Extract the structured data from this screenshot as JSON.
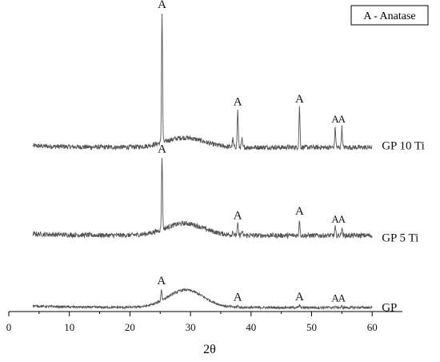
{
  "chart_data": {
    "type": "line",
    "title": "",
    "xlabel": "2θ",
    "ylabel": "",
    "xlim": [
      0,
      65
    ],
    "x_ticks": [
      0,
      10,
      20,
      30,
      40,
      50,
      60
    ],
    "x_range": [
      4,
      60
    ],
    "grid": false,
    "legend": {
      "position": "top-right",
      "text": "A - Anatase"
    },
    "peak_marker": "A",
    "series": [
      {
        "name": "GP 10 Ti",
        "offset": 2.0,
        "noise": 0.03,
        "hump": {
          "center": 29,
          "width": 4.5,
          "height": 0.12
        },
        "peaks": [
          {
            "x": 25.3,
            "height": 1.62,
            "label": "A"
          },
          {
            "x": 37.0,
            "height": 0.1
          },
          {
            "x": 37.8,
            "height": 0.46,
            "label": "A"
          },
          {
            "x": 38.5,
            "height": 0.1
          },
          {
            "x": 48.0,
            "height": 0.5,
            "label": "A"
          },
          {
            "x": 53.9,
            "height": 0.25,
            "label": "A"
          },
          {
            "x": 55.0,
            "height": 0.25,
            "label": "A"
          }
        ]
      },
      {
        "name": "GP 5 Ti",
        "offset": 0.9,
        "noise": 0.03,
        "hump": {
          "center": 29,
          "width": 4.5,
          "height": 0.15
        },
        "peaks": [
          {
            "x": 25.3,
            "height": 0.9,
            "label": "A"
          },
          {
            "x": 37.0,
            "height": 0.05
          },
          {
            "x": 37.8,
            "height": 0.14,
            "label": "A"
          },
          {
            "x": 38.5,
            "height": 0.05
          },
          {
            "x": 48.0,
            "height": 0.2,
            "label": "A"
          },
          {
            "x": 53.9,
            "height": 0.1,
            "label": "A"
          },
          {
            "x": 55.0,
            "height": 0.1,
            "label": "A"
          }
        ]
      },
      {
        "name": "GP",
        "offset": 0.0,
        "noise": 0.015,
        "hump": {
          "center": 29.2,
          "width": 4.2,
          "height": 0.22
        },
        "peaks": [
          {
            "x": 25.2,
            "height": 0.14,
            "label": "A"
          },
          {
            "x": 37.8,
            "height": 0.02,
            "label": "A"
          },
          {
            "x": 48.0,
            "height": 0.03,
            "label": "A"
          },
          {
            "x": 53.9,
            "height": 0.015,
            "label": "A"
          },
          {
            "x": 55.0,
            "height": 0.015,
            "label": "A"
          }
        ]
      }
    ]
  },
  "colors": {
    "line": "#555555",
    "axis": "#000000",
    "text": "#111111"
  }
}
